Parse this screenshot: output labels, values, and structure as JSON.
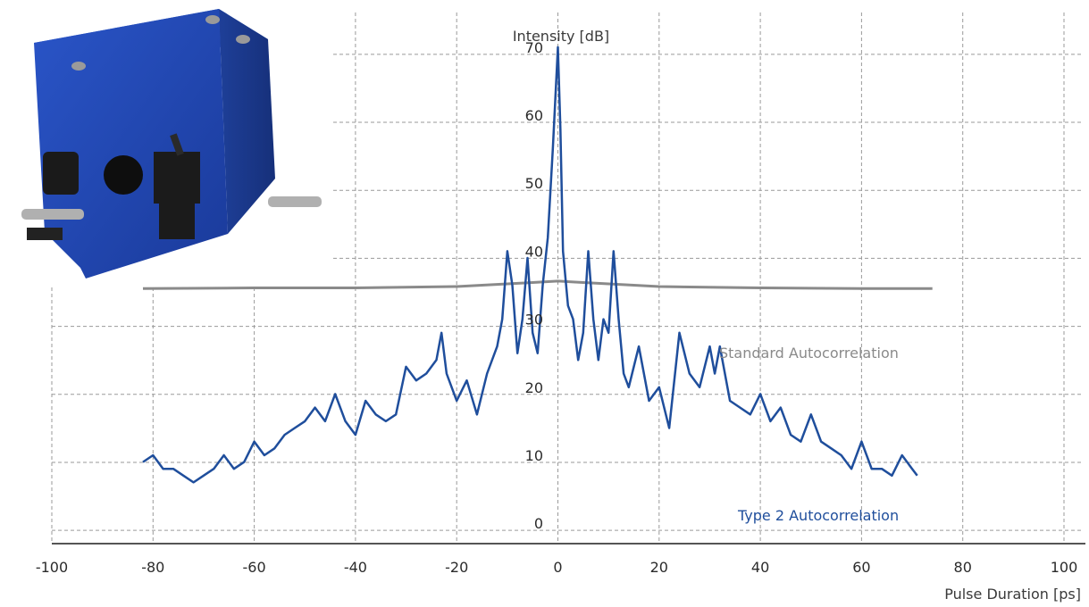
{
  "chart_data": {
    "type": "line",
    "xlabel": "Pulse Duration [ps]",
    "ylabel": "Intensity [dB]",
    "xlim": [
      -100,
      100
    ],
    "ylim": [
      -3,
      73
    ],
    "x_ticks": [
      -100,
      -80,
      -60,
      -40,
      -20,
      0,
      20,
      40,
      60,
      80,
      100
    ],
    "y_ticks": [
      0,
      10,
      20,
      30,
      40,
      50,
      60,
      70
    ],
    "grid": "dashed",
    "series": [
      {
        "name": "Standard Autocorrelation",
        "color": "#8a8a8a",
        "x": [
          -82,
          -60,
          -40,
          -20,
          -10,
          -5,
          0,
          5,
          10,
          20,
          40,
          60,
          74
        ],
        "y": [
          34.5,
          34.6,
          34.6,
          34.8,
          35.2,
          35.4,
          35.6,
          35.4,
          35.2,
          34.8,
          34.6,
          34.5,
          34.5
        ]
      },
      {
        "name": "Type 2 Autocorrelation",
        "color": "#1f4e9c",
        "x": [
          -82,
          -80,
          -78,
          -76,
          -74,
          -72,
          -70,
          -68,
          -66,
          -64,
          -62,
          -60,
          -58,
          -56,
          -54,
          -52,
          -50,
          -48,
          -46,
          -44,
          -42,
          -40,
          -38,
          -36,
          -34,
          -32,
          -30,
          -28,
          -26,
          -24,
          -23,
          -22,
          -20,
          -18,
          -16,
          -14,
          -12,
          -11,
          -10,
          -9,
          -8,
          -7,
          -6,
          -5,
          -4,
          -3,
          -2,
          -1,
          0,
          0.5,
          1,
          2,
          3,
          4,
          5,
          6,
          7,
          8,
          9,
          10,
          11,
          12,
          13,
          14,
          16,
          18,
          20,
          22,
          24,
          26,
          28,
          30,
          31,
          32,
          34,
          36,
          38,
          40,
          42,
          44,
          46,
          48,
          50,
          52,
          54,
          56,
          58,
          60,
          62,
          64,
          66,
          68,
          70,
          71
        ],
        "y": [
          9,
          10,
          8,
          8,
          7,
          6,
          7,
          8,
          10,
          8,
          9,
          12,
          10,
          11,
          13,
          14,
          15,
          17,
          15,
          19,
          15,
          13,
          18,
          16,
          15,
          16,
          23,
          21,
          22,
          24,
          28,
          22,
          18,
          21,
          16,
          22,
          26,
          30,
          40,
          35,
          25,
          30,
          39,
          28,
          25,
          35,
          42,
          55,
          70,
          58,
          40,
          32,
          30,
          24,
          28,
          40,
          30,
          24,
          30,
          28,
          40,
          30,
          22,
          20,
          26,
          18,
          20,
          14,
          28,
          22,
          20,
          26,
          22,
          26,
          18,
          17,
          16,
          19,
          15,
          17,
          13,
          12,
          16,
          12,
          11,
          10,
          8,
          12,
          8,
          8,
          7,
          10,
          8,
          7
        ]
      }
    ]
  }
}
